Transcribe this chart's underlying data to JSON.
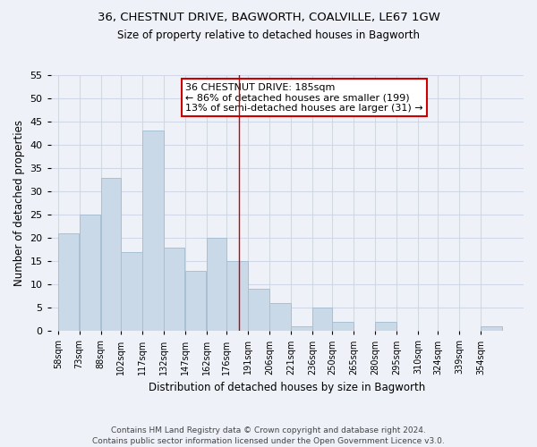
{
  "title": "36, CHESTNUT DRIVE, BAGWORTH, COALVILLE, LE67 1GW",
  "subtitle": "Size of property relative to detached houses in Bagworth",
  "xlabel": "Distribution of detached houses by size in Bagworth",
  "ylabel": "Number of detached properties",
  "bin_labels": [
    "58sqm",
    "73sqm",
    "88sqm",
    "102sqm",
    "117sqm",
    "132sqm",
    "147sqm",
    "162sqm",
    "176sqm",
    "191sqm",
    "206sqm",
    "221sqm",
    "236sqm",
    "250sqm",
    "265sqm",
    "280sqm",
    "295sqm",
    "310sqm",
    "324sqm",
    "339sqm",
    "354sqm"
  ],
  "bin_edges": [
    58,
    73,
    88,
    102,
    117,
    132,
    147,
    162,
    176,
    191,
    206,
    221,
    236,
    250,
    265,
    280,
    295,
    310,
    324,
    339,
    354,
    369
  ],
  "values": [
    21,
    25,
    33,
    17,
    43,
    18,
    13,
    20,
    15,
    9,
    6,
    1,
    5,
    2,
    0,
    2,
    0,
    0,
    0,
    0,
    1
  ],
  "bar_color": "#c9d9e8",
  "bar_edge_color": "#a8c0d4",
  "grid_color": "#d0d8e8",
  "bg_color": "#eef2f8",
  "vline_x": 185,
  "vline_color": "#cc0000",
  "annotation_title": "36 CHESTNUT DRIVE: 185sqm",
  "annotation_line1": "← 86% of detached houses are smaller (199)",
  "annotation_line2": "13% of semi-detached houses are larger (31) →",
  "annotation_box_color": "#cc0000",
  "ylim": [
    0,
    55
  ],
  "yticks": [
    0,
    5,
    10,
    15,
    20,
    25,
    30,
    35,
    40,
    45,
    50,
    55
  ],
  "footer_line1": "Contains HM Land Registry data © Crown copyright and database right 2024.",
  "footer_line2": "Contains public sector information licensed under the Open Government Licence v3.0."
}
